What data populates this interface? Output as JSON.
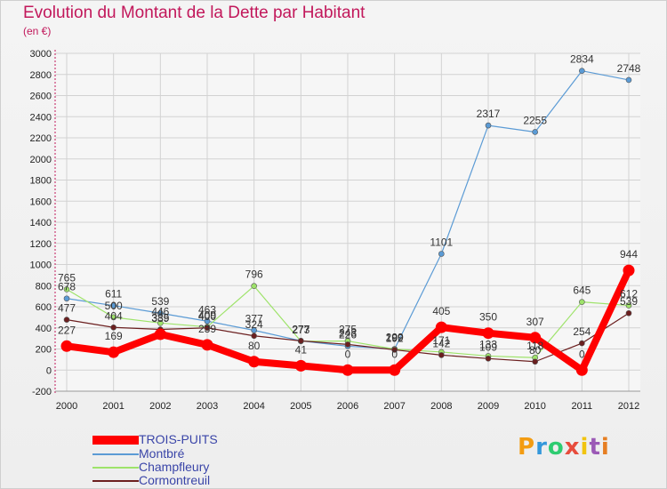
{
  "header": {
    "title": "Evolution du Montant de la Dette par Habitant",
    "subtitle": "(en €)"
  },
  "brand": {
    "letters": [
      "P",
      "r",
      "o",
      "x",
      "i",
      "t",
      "i"
    ],
    "colors": [
      "#f39c12",
      "#3498db",
      "#2ecc71",
      "#e74c3c",
      "#f1c40f",
      "#9b59b6",
      "#e67e22"
    ]
  },
  "chart_data": {
    "type": "line",
    "title": "Evolution du Montant de la Dette par Habitant",
    "subtitle": "(en €)",
    "x": [
      "2000",
      "2001",
      "2002",
      "2003",
      "2004",
      "2005",
      "2006",
      "2007",
      "2008",
      "2009",
      "2010",
      "2011",
      "2012"
    ],
    "ylim": [
      -200,
      3000
    ],
    "yticks": [
      -200,
      0,
      200,
      400,
      600,
      800,
      1000,
      1200,
      1400,
      1600,
      1800,
      2000,
      2200,
      2400,
      2600,
      2800,
      3000
    ],
    "grid": true,
    "legend": "bottom-left",
    "series": [
      {
        "name": "TROIS-PUITS",
        "color": "#ff0000",
        "values": [
          227,
          169,
          339,
          239,
          80,
          41,
          0,
          0,
          405,
          350,
          307,
          0,
          944
        ]
      },
      {
        "name": "Montbré",
        "color": "#5b9bd5",
        "values": [
          678,
          611,
          539,
          463,
          377,
          277,
          226,
          200,
          1101,
          2317,
          2255,
          2834,
          2748
        ]
      },
      {
        "name": "Champfleury",
        "color": "#9ee36a",
        "values": [
          765,
          500,
          446,
          409,
          796,
          273,
          275,
          199,
          171,
          133,
          118,
          645,
          612
        ]
      },
      {
        "name": "Cormontreuil",
        "color": "#6b1f1f",
        "values": [
          477,
          404,
          385,
          400,
          324,
          277,
          243,
          192,
          142,
          109,
          80,
          254,
          539
        ]
      }
    ]
  }
}
